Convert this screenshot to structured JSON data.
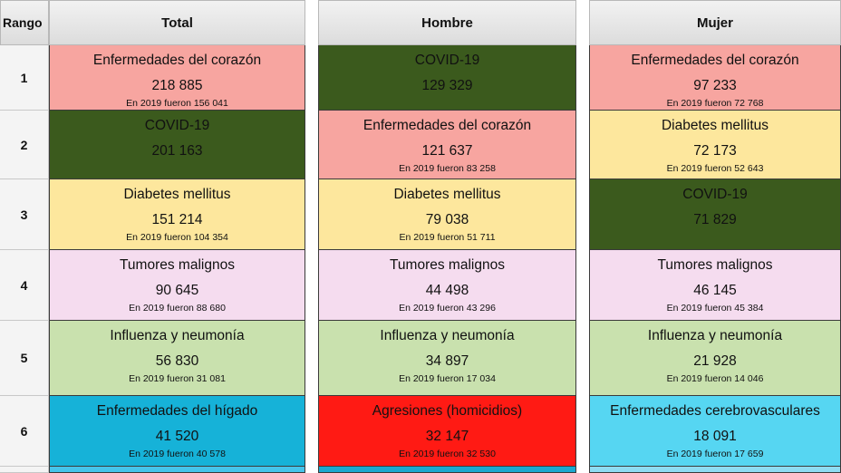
{
  "headers": {
    "rank": "Rango",
    "total": "Total",
    "hombre": "Hombre",
    "mujer": "Mujer"
  },
  "ranks": [
    "1",
    "2",
    "3",
    "4",
    "5",
    "6"
  ],
  "total": [
    {
      "cause": "Enfermedades del corazón",
      "count": "218 885",
      "prev": "En 2019 fueron 156 041"
    },
    {
      "cause": "COVID-19",
      "count": "201 163",
      "prev": ""
    },
    {
      "cause": "Diabetes mellitus",
      "count": "151 214",
      "prev": "En 2019 fueron 104 354"
    },
    {
      "cause": "Tumores malignos",
      "count": "90 645",
      "prev": "En 2019 fueron 88 680"
    },
    {
      "cause": "Influenza y neumonía",
      "count": "56 830",
      "prev": "En 2019 fueron 31 081"
    },
    {
      "cause": "Enfermedades del hígado",
      "count": "41 520",
      "prev": "En 2019 fueron 40 578"
    }
  ],
  "hombre": [
    {
      "cause": "COVID-19",
      "count": "129 329",
      "prev": ""
    },
    {
      "cause": "Enfermedades del corazón",
      "count": "121 637",
      "prev": "En 2019 fueron 83 258"
    },
    {
      "cause": "Diabetes mellitus",
      "count": "79 038",
      "prev": "En 2019 fueron 51 711"
    },
    {
      "cause": "Tumores malignos",
      "count": "44 498",
      "prev": "En 2019 fueron 43 296"
    },
    {
      "cause": "Influenza y neumonía",
      "count": "34 897",
      "prev": "En 2019 fueron 17 034"
    },
    {
      "cause": "Agresiones (homicidios)",
      "count": "32 147",
      "prev": "En 2019 fueron 32 530"
    }
  ],
  "mujer": [
    {
      "cause": "Enfermedades del corazón",
      "count": "97 233",
      "prev": "En 2019 fueron 72 768"
    },
    {
      "cause": "Diabetes mellitus",
      "count": "72 173",
      "prev": "En 2019 fueron 52 643"
    },
    {
      "cause": "COVID-19",
      "count": "71 829",
      "prev": ""
    },
    {
      "cause": "Tumores malignos",
      "count": "46 145",
      "prev": "En 2019 fueron 45 384"
    },
    {
      "cause": "Influenza y neumonía",
      "count": "21 928",
      "prev": "En 2019 fueron 14 046"
    },
    {
      "cause": "Enfermedades cerebrovasculares",
      "count": "18 091",
      "prev": "En 2019 fueron 17 659"
    }
  ],
  "colors": {
    "heart": "#f7a5a0",
    "covid": "#3b5a1d",
    "diabetes": "#fde79d",
    "tumor": "#f5dcef",
    "influenza": "#c9e1ae",
    "liver": "#16b2d8",
    "homicide": "#ff1a14",
    "cerebrovascular": "#56d6f2"
  }
}
